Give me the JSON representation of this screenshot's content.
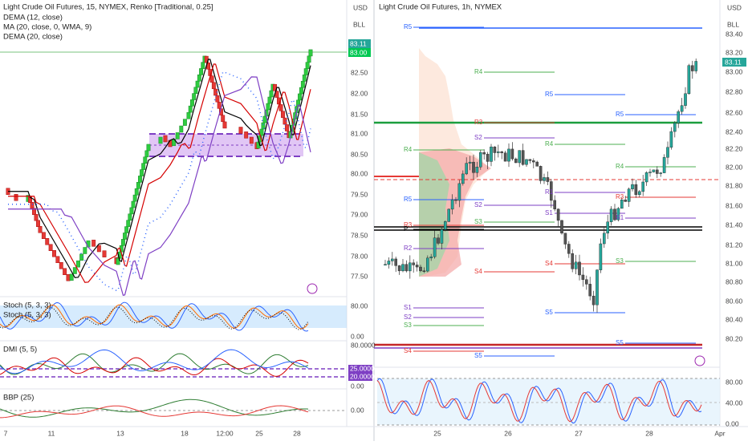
{
  "left": {
    "legend": [
      "Light Crude Oil Futures, 15, NYMEX, Renko [Traditional, 0.25]",
      "DEMA (12, close)",
      "MA (20, close, 0, WMA, 9)",
      "DEMA (20, close)"
    ],
    "currency": "USD",
    "unit": "BLL",
    "price_ticks": [
      "82.50",
      "82.00",
      "81.50",
      "81.00",
      "80.50",
      "80.00",
      "79.50",
      "79.00",
      "78.50",
      "78.00",
      "77.50"
    ],
    "last_price": "83.11",
    "last_label": "83.00",
    "stoch_label": "Stoch (5, 3, 3)",
    "stoch_label2": "Stoch (5, 3, 3)",
    "stoch_ticks": [
      "80.00",
      "0.00"
    ],
    "dmi_label": "DMI (5, 5)",
    "dmi_ticks": [
      "80.0000",
      "0.00"
    ],
    "dmi_badges": [
      "25.0000",
      "20.0000"
    ],
    "bbp_label": "BBP (25)",
    "bbp_ticks": [
      "0.00"
    ],
    "time_labels": [
      "7",
      "11",
      "13",
      "18",
      "12:00",
      "25",
      "28"
    ]
  },
  "right": {
    "legend": "Light Crude Oil Futures, 1h, NYMEX",
    "currency": "USD",
    "unit": "BLL",
    "price_ticks": [
      "83.40",
      "83.20",
      "83.00",
      "82.80",
      "82.60",
      "82.40",
      "82.20",
      "82.00",
      "81.80",
      "81.60",
      "81.40",
      "81.20",
      "81.00",
      "80.80",
      "80.60",
      "80.40",
      "80.20"
    ],
    "last_price": "83.11",
    "stoch_ticks": [
      "80.00",
      "40.00",
      "0.00"
    ],
    "time_labels": [
      "25",
      "26",
      "27",
      "28",
      "Apr"
    ],
    "pivots": [
      "R5",
      "R4",
      "R5",
      "R5",
      "R3",
      "S2",
      "R4",
      "R4",
      "R4",
      "R5",
      "R3",
      "R3",
      "P",
      "R2",
      "S1",
      "S2",
      "S3",
      "R1",
      "S4",
      "S4",
      "S5",
      "S5",
      "S1",
      "S2",
      "S3",
      "S4",
      "S5",
      "R1",
      "S3"
    ]
  }
}
